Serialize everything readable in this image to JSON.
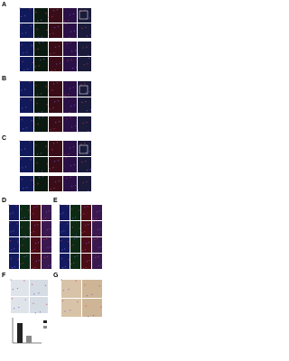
{
  "panels": [
    {
      "label": "A"
    },
    {
      "label": "B"
    },
    {
      "label": "C"
    },
    {
      "label": "D"
    },
    {
      "label": "E"
    },
    {
      "label": "F"
    },
    {
      "label": "G"
    }
  ]
}
